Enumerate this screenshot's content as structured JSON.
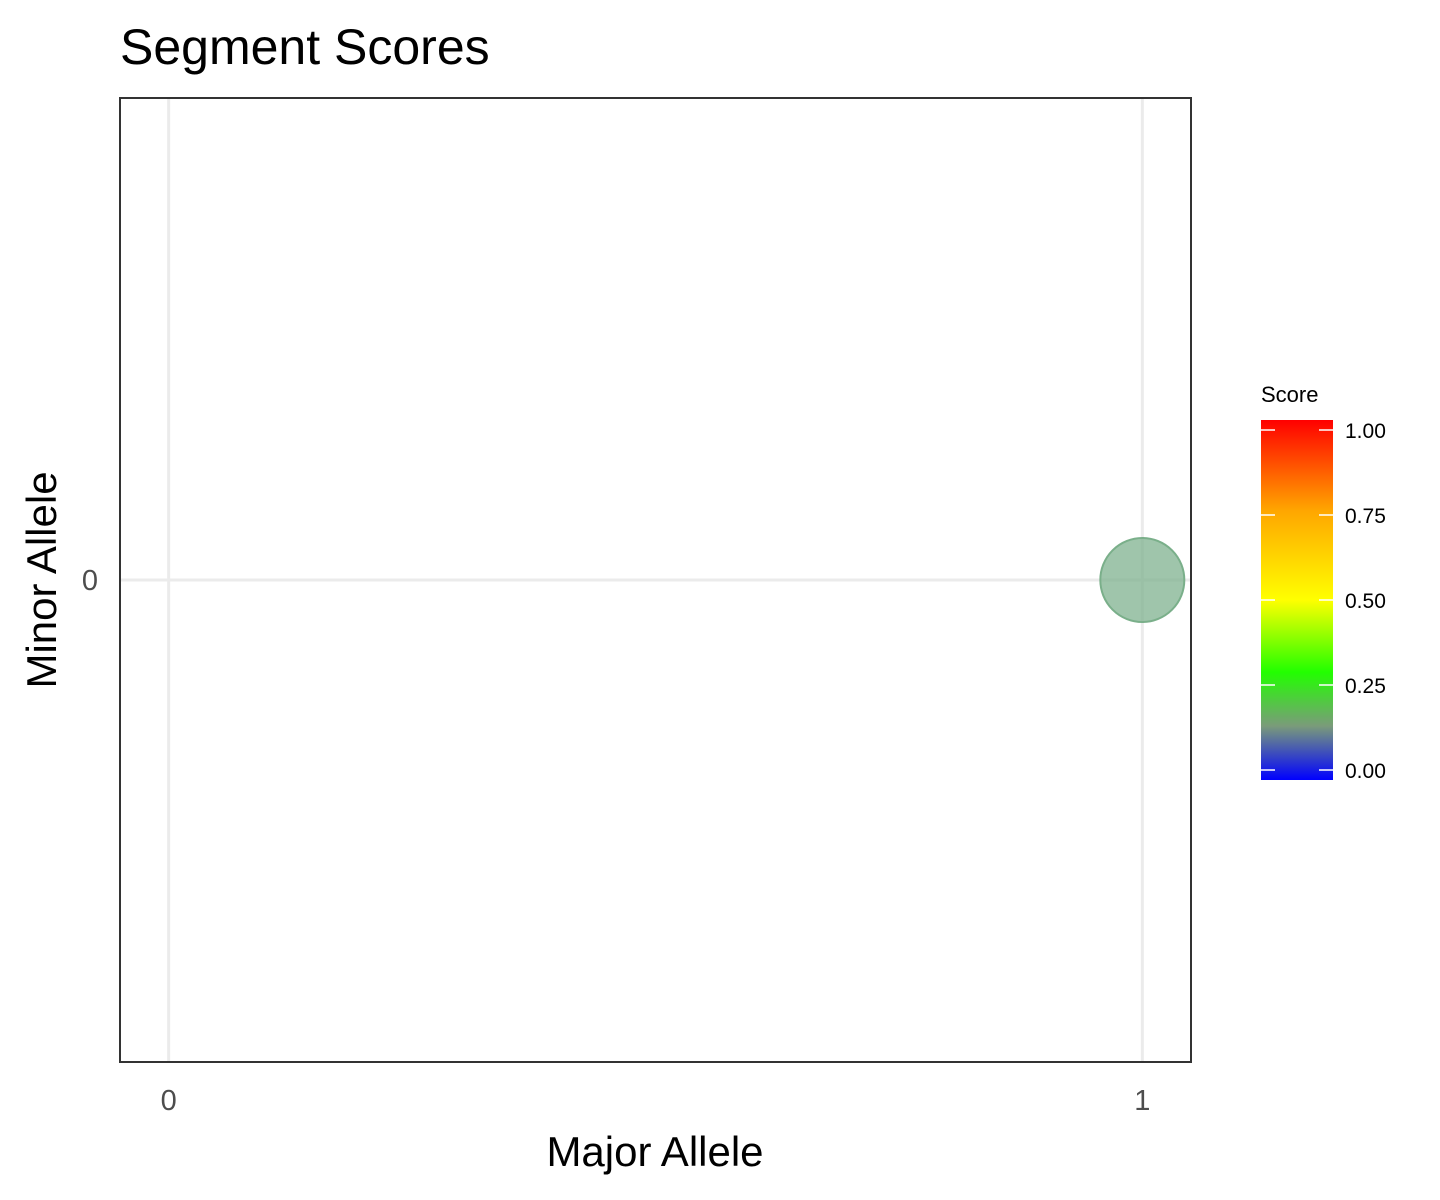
{
  "chart_data": {
    "type": "scatter",
    "title": "Segment Scores",
    "xlabel": "Major Allele",
    "ylabel": "Minor Allele",
    "x_ticks": [
      "0",
      "1"
    ],
    "y_ticks": [
      "0"
    ],
    "xlim": [
      -0.05,
      1.05
    ],
    "ylim": [
      -0.5,
      0.5
    ],
    "grid": true,
    "points": [
      {
        "x": 1,
        "y": 0,
        "score": 0.2
      }
    ],
    "legend": {
      "title": "Score",
      "placement": "right",
      "ticks": [
        "0.00",
        "0.25",
        "0.50",
        "0.75",
        "1.00"
      ],
      "tick_values": [
        0,
        0.25,
        0.5,
        0.75,
        1
      ],
      "colors": [
        "#0000ff",
        "#7a9b7a",
        "#22ff00",
        "#ffff00",
        "#ffa500",
        "#ff0000"
      ],
      "color_stops": [
        0,
        0.15,
        0.3,
        0.5,
        0.75,
        1
      ]
    },
    "point_color": "#7aaf8a"
  }
}
